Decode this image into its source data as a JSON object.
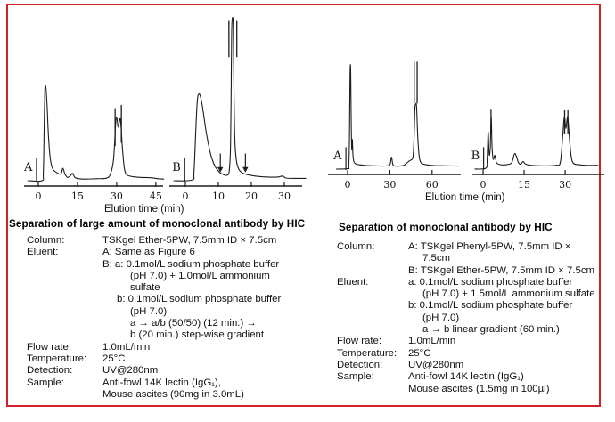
{
  "page": {
    "border_color": "#d22027",
    "background": "#ffffff",
    "trace_color": "#1c1c1c"
  },
  "section_left": {
    "title": "Separation of large amount of monoclonal antibody by HIC",
    "rows": [
      {
        "label": "Column:",
        "lines": [
          {
            "indent": 0,
            "text": "TSKgel Ether-5PW, 7.5mm ID × 7.5cm"
          }
        ]
      },
      {
        "label": "Eluent:",
        "lines": [
          {
            "indent": 0,
            "text": "A: Same as Figure 6"
          },
          {
            "indent": 0,
            "text": "B: a: 0.1mol/L sodium phosphate buffer"
          },
          {
            "indent": 2,
            "text": "(pH 7.0) + 1.0mol/L ammonium"
          },
          {
            "indent": 2,
            "text": "sulfate"
          },
          {
            "indent": 1,
            "text": "b: 0.1mol/L sodium phosphate buffer"
          },
          {
            "indent": 2,
            "text": "(pH 7.0)"
          },
          {
            "indent": 2,
            "text": "a → a/b (50/50) (12 min.) →"
          },
          {
            "indent": 2,
            "text": "b (20 min.) step-wise gradient"
          }
        ]
      },
      {
        "label": "Flow rate:",
        "lines": [
          {
            "indent": 0,
            "text": "1.0mL/min"
          }
        ]
      },
      {
        "label": "Temperature:",
        "lines": [
          {
            "indent": 0,
            "text": "25°C"
          }
        ]
      },
      {
        "label": "Detection:",
        "lines": [
          {
            "indent": 0,
            "text": "UV@280nm"
          }
        ]
      },
      {
        "label": "Sample:",
        "lines": [
          {
            "indent": 0,
            "text": "Anti-fowl 14K lectin (IgG₁),"
          },
          {
            "indent": 0,
            "text": "Mouse ascites (90mg in 3.0mL)"
          }
        ]
      }
    ]
  },
  "section_right": {
    "title": "Separation of monoclonal antibody by HIC",
    "rows": [
      {
        "label": "Column:",
        "lines": [
          {
            "indent": 0,
            "text": "A: TSKgel Phenyl-5PW, 7.5mm ID ×"
          },
          {
            "indent": 1,
            "text": "7.5cm"
          },
          {
            "indent": 0,
            "text": "B: TSKgel Ether-5PW, 7.5mm ID × 7.5cm"
          }
        ]
      },
      {
        "label": "Eluent:",
        "lines": [
          {
            "indent": 0,
            "text": "a: 0.1mol/L sodium phosphate buffer"
          },
          {
            "indent": 1,
            "text": "(pH 7.0) + 1.5mol/L ammonium sulfate"
          },
          {
            "indent": 0,
            "text": "b: 0.1mol/L sodium phosphate buffer"
          },
          {
            "indent": 1,
            "text": "(pH 7.0)"
          },
          {
            "indent": 1,
            "text": "a → b linear gradient (60 min.)"
          }
        ]
      },
      {
        "label": "Flow rate:",
        "lines": [
          {
            "indent": 0,
            "text": "1.0mL/min"
          }
        ]
      },
      {
        "label": "Temperature:",
        "lines": [
          {
            "indent": 0,
            "text": "25°C"
          }
        ]
      },
      {
        "label": "Detection:",
        "lines": [
          {
            "indent": 0,
            "text": "UV@280nm"
          }
        ]
      },
      {
        "label": "Sample:",
        "lines": [
          {
            "indent": 0,
            "text": "Anti-fowl 14K lectin (IgG₁)"
          },
          {
            "indent": 0,
            "text": "Mouse ascites (1.5mg in 100µl)"
          }
        ]
      }
    ]
  },
  "chart_data": [
    {
      "type": "line",
      "title": "Separation of large amount of monoclonal antibody by HIC",
      "xlabel": "Elution time (min)",
      "ylabel": "",
      "legend": "none",
      "grid": false,
      "panels": [
        {
          "label": "A",
          "x_ticks": [
            0,
            15,
            30,
            45
          ],
          "x_range": [
            -5,
            49
          ],
          "injection": {
            "x": -0.7,
            "h": 0.14
          },
          "trace": [
            [
              -4,
              0
            ],
            [
              1.4,
              0
            ],
            [
              1.9,
              0.05
            ],
            [
              2.2,
              0.28
            ],
            [
              2.5,
              0.55
            ],
            [
              2.9,
              0.565
            ],
            [
              3.3,
              0.47
            ],
            [
              3.9,
              0.27
            ],
            [
              4.6,
              0.13
            ],
            [
              5.6,
              0.07
            ],
            [
              7,
              0.05
            ],
            [
              8.6,
              0.04
            ],
            [
              9.4,
              0.075
            ],
            [
              10.2,
              0.04
            ],
            [
              11.2,
              0.02
            ],
            [
              12.3,
              0.03
            ],
            [
              13.1,
              0.045
            ],
            [
              14,
              0.02
            ],
            [
              15.5,
              0.012
            ],
            [
              18,
              0.01
            ],
            [
              22,
              0.012
            ],
            [
              26,
              0.015
            ],
            [
              27.6,
              0.04
            ],
            [
              28.8,
              0.13
            ],
            [
              29.8,
              0.38
            ],
            [
              30.6,
              0.325
            ],
            [
              31.4,
              0.375
            ],
            [
              32.2,
              0.2
            ],
            [
              33,
              0.07
            ],
            [
              34,
              0.035
            ],
            [
              36,
              0.025
            ],
            [
              39,
              0.02
            ],
            [
              43,
              0.018
            ],
            [
              46,
              0.012
            ],
            [
              48,
              0.01
            ]
          ],
          "offscale_marks": [
            {
              "x": 29.4,
              "y1": 0.21,
              "y2": 0.44
            },
            {
              "x": 31.8,
              "y1": 0.23,
              "y2": 0.46
            }
          ],
          "arrows": []
        },
        {
          "label": "B",
          "x_ticks": [
            0,
            10,
            20,
            30
          ],
          "x_range": [
            -4.5,
            36.5
          ],
          "injection": {
            "x": -0.2,
            "h": 0.14
          },
          "trace": [
            [
              -3.5,
              0
            ],
            [
              2,
              0.004
            ],
            [
              2.6,
              0.05
            ],
            [
              3.1,
              0.28
            ],
            [
              3.6,
              0.48
            ],
            [
              4.1,
              0.527
            ],
            [
              4.7,
              0.5
            ],
            [
              5.4,
              0.42
            ],
            [
              6.2,
              0.31
            ],
            [
              7.1,
              0.21
            ],
            [
              8.1,
              0.13
            ],
            [
              9.2,
              0.08
            ],
            [
              10.4,
              0.05
            ],
            [
              11.6,
              0.037
            ],
            [
              12.6,
              0.033
            ],
            [
              13.3,
              0.06
            ],
            [
              13.7,
              0.22
            ],
            [
              13.95,
              0.72
            ],
            [
              14.1,
              0.955
            ],
            [
              14.5,
              0.955
            ],
            [
              14.7,
              0.6
            ],
            [
              15,
              0.25
            ],
            [
              15.5,
              0.12
            ],
            [
              16.2,
              0.07
            ],
            [
              17.2,
              0.048
            ],
            [
              18.5,
              0.038
            ],
            [
              20,
              0.032
            ],
            [
              22,
              0.026
            ],
            [
              25,
              0.022
            ],
            [
              28,
              0.022
            ],
            [
              29.5,
              0.028
            ],
            [
              30.5,
              0.016
            ],
            [
              33,
              0.014
            ],
            [
              36.5,
              0.014
            ]
          ],
          "offscale_marks": [
            {
              "x": 13.2,
              "y1": 0.75,
              "y2": 0.97
            },
            {
              "x": 15.6,
              "y1": 0.75,
              "y2": 0.97
            }
          ],
          "arrows": [
            {
              "x": 10.6,
              "y1": 0.165,
              "y2": 0.05
            },
            {
              "x": 18.2,
              "y1": 0.165,
              "y2": 0.05
            }
          ]
        }
      ]
    },
    {
      "type": "line",
      "title": "Separation of monoclonal antibody by HIC",
      "xlabel": "Elution time (min)",
      "ylabel": "",
      "legend": "none",
      "grid": false,
      "panels": [
        {
          "label": "A",
          "x_ticks": [
            0,
            30,
            60
          ],
          "x_range": [
            -14,
            80
          ],
          "injection": {
            "x": -1.2,
            "h": 0.2
          },
          "trace": [
            [
              -8,
              0
            ],
            [
              0.3,
              0.005
            ],
            [
              0.9,
              0.04
            ],
            [
              1.4,
              0.35
            ],
            [
              1.8,
              0.89
            ],
            [
              2.2,
              0.89
            ],
            [
              2.6,
              0.4
            ],
            [
              3,
              0.18
            ],
            [
              3.4,
              0.27
            ],
            [
              3.8,
              0.13
            ],
            [
              4.4,
              0.07
            ],
            [
              5.5,
              0.05
            ],
            [
              8,
              0.04
            ],
            [
              13,
              0.033
            ],
            [
              19,
              0.03
            ],
            [
              25,
              0.028
            ],
            [
              29,
              0.032
            ],
            [
              30.3,
              0.05
            ],
            [
              31.2,
              0.11
            ],
            [
              32.2,
              0.04
            ],
            [
              34,
              0.028
            ],
            [
              37,
              0.028
            ],
            [
              40,
              0.035
            ],
            [
              42.5,
              0.06
            ],
            [
              44.5,
              0.08
            ],
            [
              45.8,
              0.09
            ],
            [
              46.6,
              0.13
            ],
            [
              47.2,
              0.3
            ],
            [
              47.8,
              0.55
            ],
            [
              48.3,
              0.59
            ],
            [
              49,
              0.57
            ],
            [
              49.8,
              0.3
            ],
            [
              50.8,
              0.12
            ],
            [
              52,
              0.06
            ],
            [
              54,
              0.045
            ],
            [
              57,
              0.038
            ],
            [
              62,
              0.032
            ],
            [
              70,
              0.03
            ],
            [
              79,
              0.028
            ]
          ],
          "offscale_marks": [
            {
              "x": 47.3,
              "y1": 0.6,
              "y2": 0.98
            },
            {
              "x": 49.4,
              "y1": 0.6,
              "y2": 0.98
            }
          ],
          "arrows": []
        },
        {
          "label": "B",
          "x_ticks": [
            0,
            15,
            30
          ],
          "x_range": [
            -4,
            43.5
          ],
          "injection": {
            "x": 0.2,
            "h": 0.2
          },
          "trace": [
            [
              -3,
              0
            ],
            [
              1.1,
              0.01
            ],
            [
              1.5,
              0.09
            ],
            [
              1.85,
              0.34
            ],
            [
              2.2,
              0.14
            ],
            [
              2.6,
              0.18
            ],
            [
              2.95,
              0.48
            ],
            [
              3.3,
              0.2
            ],
            [
              3.7,
              0.09
            ],
            [
              4.3,
              0.125
            ],
            [
              4.9,
              0.06
            ],
            [
              5.7,
              0.045
            ],
            [
              7,
              0.038
            ],
            [
              9,
              0.042
            ],
            [
              10.5,
              0.06
            ],
            [
              11.5,
              0.14
            ],
            [
              12.2,
              0.115
            ],
            [
              12.9,
              0.06
            ],
            [
              13.8,
              0.045
            ],
            [
              14.6,
              0.07
            ],
            [
              15.3,
              0.05
            ],
            [
              16.2,
              0.04
            ],
            [
              18,
              0.033
            ],
            [
              21,
              0.03
            ],
            [
              24,
              0.03
            ],
            [
              26.8,
              0.036
            ],
            [
              28.2,
              0.06
            ],
            [
              29.1,
              0.3
            ],
            [
              29.7,
              0.48
            ],
            [
              30.3,
              0.37
            ],
            [
              30.9,
              0.48
            ],
            [
              31.6,
              0.27
            ],
            [
              32.3,
              0.1
            ],
            [
              33.2,
              0.05
            ],
            [
              35,
              0.04
            ],
            [
              38,
              0.034
            ],
            [
              42,
              0.034
            ]
          ],
          "offscale_marks": [
            {
              "x": 2.9,
              "y1": 0.33,
              "y2": 0.55
            },
            {
              "x": 29.8,
              "y1": 0.32,
              "y2": 0.54
            },
            {
              "x": 31,
              "y1": 0.32,
              "y2": 0.54
            }
          ],
          "arrows": []
        }
      ]
    }
  ]
}
